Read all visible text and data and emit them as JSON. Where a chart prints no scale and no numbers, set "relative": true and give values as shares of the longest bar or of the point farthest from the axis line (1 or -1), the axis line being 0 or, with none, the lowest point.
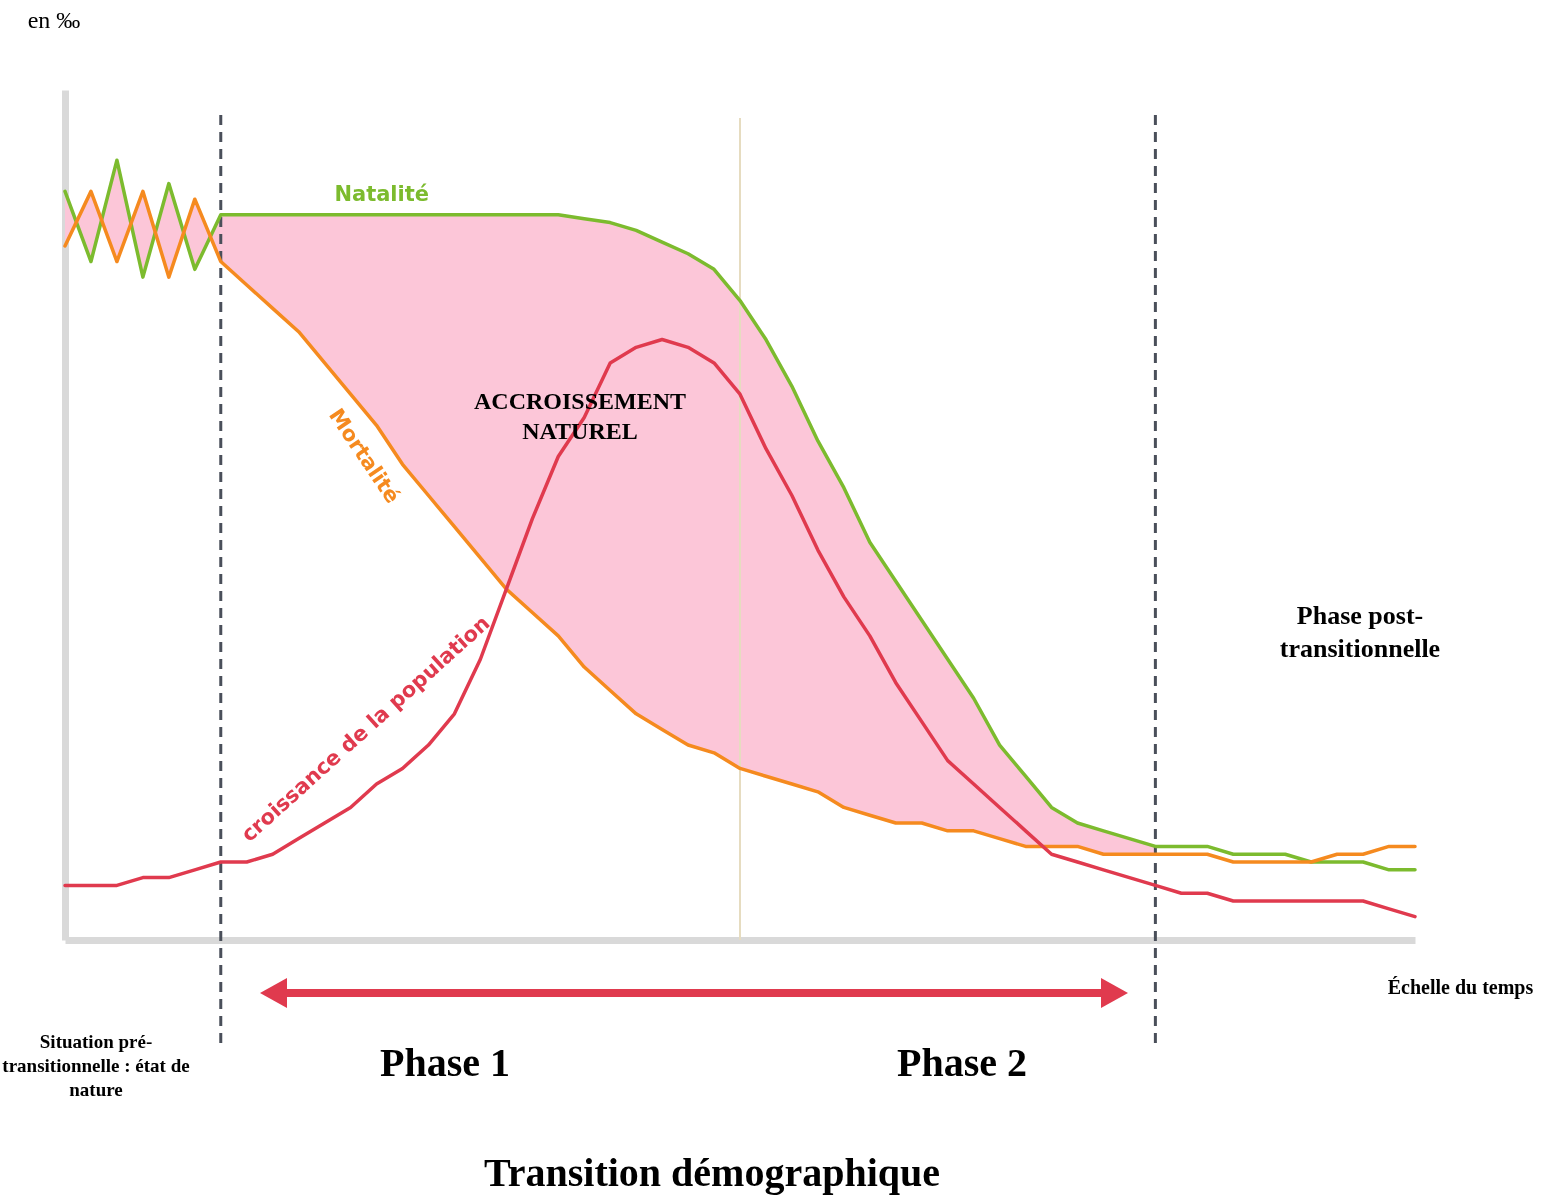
{
  "chart_data": {
    "type": "line",
    "relative": true,
    "title": "Transition démographique",
    "xlabel": "Échelle du temps",
    "legend": false,
    "marker": "none",
    "line_style": "solid",
    "categories": [
      null,
      null,
      null,
      null,
      null,
      null,
      null,
      null,
      null,
      null,
      null,
      null,
      null,
      null,
      null,
      null,
      null,
      null,
      null,
      null,
      null,
      null,
      null,
      null,
      null,
      null,
      null,
      null,
      null,
      null,
      null,
      null,
      null,
      null,
      null,
      null,
      null,
      null,
      null,
      null,
      null,
      null,
      null,
      null,
      null,
      null,
      null,
      null,
      null,
      null,
      null,
      null,
      null
    ],
    "series": [
      {
        "name": "Natalité",
        "color": "#7cbb2e",
        "values": [
          0.96,
          0.87,
          1.0,
          0.85,
          0.97,
          0.86,
          0.93,
          0.93,
          0.93,
          0.93,
          0.93,
          0.93,
          0.93,
          0.93,
          0.93,
          0.93,
          0.93,
          0.93,
          0.93,
          0.93,
          0.925,
          0.92,
          0.91,
          0.895,
          0.88,
          0.86,
          0.82,
          0.77,
          0.71,
          0.64,
          0.58,
          0.51,
          0.46,
          0.41,
          0.36,
          0.31,
          0.25,
          0.21,
          0.17,
          0.15,
          0.14,
          0.13,
          0.12,
          0.12,
          0.12,
          0.11,
          0.11,
          0.11,
          0.1,
          0.1,
          0.1,
          0.09,
          0.09
        ],
        "lower": [
          0.89,
          0.96,
          0.87,
          0.96,
          0.85,
          0.95,
          0.87,
          0.84,
          0.81,
          0.78,
          0.74,
          0.7,
          0.66,
          0.61,
          0.57,
          0.53,
          0.49,
          0.45,
          0.42,
          0.39,
          0.35,
          0.32,
          0.29,
          0.27,
          0.25,
          0.24,
          0.22,
          0.21,
          0.2,
          0.19,
          0.17,
          0.16,
          0.15,
          0.15,
          0.14,
          0.14,
          0.13,
          0.12,
          0.12,
          0.12,
          0.11,
          0.11,
          0.11,
          null,
          null,
          null,
          null,
          null,
          null,
          null,
          null,
          null,
          null
        ],
        "upper": [
          0.96,
          0.87,
          1.0,
          0.85,
          0.97,
          0.86,
          0.93,
          0.93,
          0.93,
          0.93,
          0.93,
          0.93,
          0.93,
          0.93,
          0.93,
          0.93,
          0.93,
          0.93,
          0.93,
          0.93,
          0.925,
          0.92,
          0.91,
          0.895,
          0.88,
          0.86,
          0.82,
          0.77,
          0.71,
          0.64,
          0.58,
          0.51,
          0.46,
          0.41,
          0.36,
          0.31,
          0.25,
          0.21,
          0.17,
          0.15,
          0.14,
          0.13,
          0.12,
          null,
          null,
          null,
          null,
          null,
          null,
          null,
          null,
          null,
          null
        ]
      },
      {
        "name": "Mortalité",
        "color": "#f58a1f",
        "values": [
          0.89,
          0.96,
          0.87,
          0.96,
          0.85,
          0.95,
          0.87,
          0.84,
          0.81,
          0.78,
          0.74,
          0.7,
          0.66,
          0.61,
          0.57,
          0.53,
          0.49,
          0.45,
          0.42,
          0.39,
          0.35,
          0.32,
          0.29,
          0.27,
          0.25,
          0.24,
          0.22,
          0.21,
          0.2,
          0.19,
          0.17,
          0.16,
          0.15,
          0.15,
          0.14,
          0.14,
          0.13,
          0.12,
          0.12,
          0.12,
          0.11,
          0.11,
          0.11,
          0.11,
          0.11,
          0.1,
          0.1,
          0.1,
          0.1,
          0.11,
          0.11,
          0.12,
          0.12
        ]
      },
      {
        "name": "croissance de la population",
        "color": "#e03a4e",
        "values": [
          0.07,
          0.07,
          0.07,
          0.08,
          0.08,
          0.09,
          0.1,
          0.1,
          0.11,
          0.13,
          0.15,
          0.17,
          0.2,
          0.22,
          0.25,
          0.29,
          0.36,
          0.45,
          0.54,
          0.62,
          0.67,
          0.74,
          0.76,
          0.77,
          0.76,
          0.74,
          0.7,
          0.63,
          0.57,
          0.5,
          0.44,
          0.39,
          0.33,
          0.28,
          0.23,
          0.2,
          0.17,
          0.14,
          0.11,
          0.1,
          0.09,
          0.08,
          0.07,
          0.06,
          0.06,
          0.05,
          0.05,
          0.05,
          0.05,
          0.05,
          0.05,
          0.04,
          0.03
        ]
      }
    ],
    "annotations": [
      "ACCROISSEMENT NATUREL",
      "Situation pré-transitionnelle : état de nature",
      "Phase 1",
      "Phase 2",
      "Phase post-transitionnelle",
      "en ‰"
    ]
  }
}
